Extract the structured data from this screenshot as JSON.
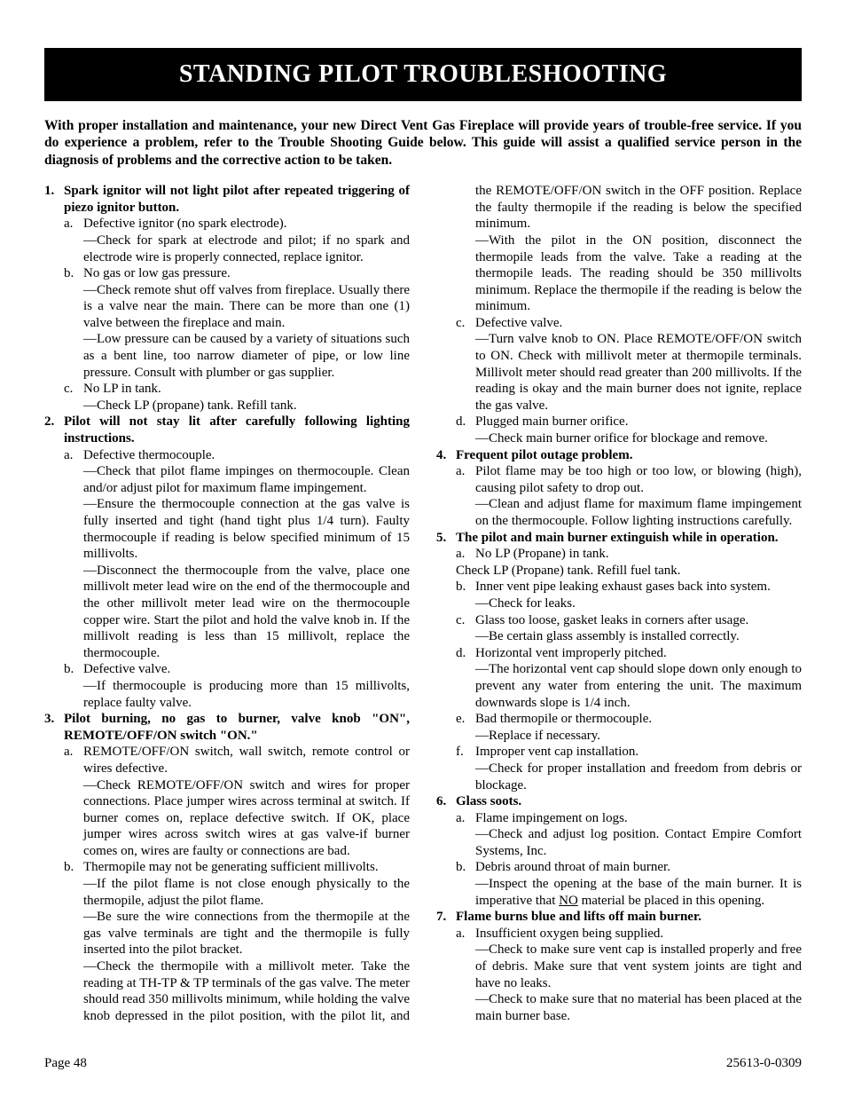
{
  "title": "STANDING PILOT TROUBLESHOOTING",
  "intro": "With proper installation and maintenance, your new Direct Vent Gas Fireplace will provide years of trouble-free service. If you do experience a problem, refer to the Trouble Shooting Guide below. This guide will assist a qualified service person in the diagnosis of problems and the corrective action to be taken.",
  "footer_left": "Page 48",
  "footer_right": "25613-0-0309",
  "t1": {
    "num": "1.",
    "h": "Spark ignitor will not light pilot after repeated triggering of piezo ignitor button.",
    "a": {
      "l": "a.",
      "t": "Defective ignitor (no spark electrode)."
    },
    "a1": "—Check for spark at electrode and pilot; if no spark and electrode wire is properly connected, replace ignitor.",
    "b": {
      "l": "b.",
      "t": "No gas or low gas pressure."
    },
    "b1": "—Check remote shut off valves from fireplace. Usually there is a valve near the main. There can be more than one (1) valve between the fireplace and main.",
    "b2": "—Low pressure can be caused by a variety of situations such as a bent line, too narrow diameter of pipe, or low line pressure. Consult with plumber or gas supplier.",
    "c": {
      "l": "c.",
      "t": "No LP in tank."
    },
    "c1": "—Check LP (propane) tank. Refill tank."
  },
  "t2": {
    "num": "2.",
    "h": "Pilot will not stay lit after carefully following lighting instructions.",
    "a": {
      "l": "a.",
      "t": "Defective thermocouple."
    },
    "a1": "—Check that pilot flame impinges on thermocouple. Clean and/or adjust pilot for maximum flame impingement.",
    "a2": "—Ensure the thermocouple connection at the gas valve is fully inserted and tight (hand tight plus 1/4 turn). Faulty thermocouple if reading is below specified minimum of 15 millivolts.",
    "a3": "—Disconnect the thermocouple from the valve, place one millivolt meter lead wire on the end of the thermocouple and the other millivolt meter lead wire on the thermocouple copper wire. Start the pilot and hold the valve knob in. If the millivolt reading is less than 15 millivolt, replace the thermocouple.",
    "b": {
      "l": "b.",
      "t": "Defective valve."
    },
    "b1": "—If thermocouple is producing more than 15 millivolts, replace faulty valve."
  },
  "t3": {
    "num": "3.",
    "h": "Pilot burning, no gas to burner, valve knob \"ON\", REMOTE/OFF/ON switch \"ON.\"",
    "a": {
      "l": "a.",
      "t": "REMOTE/OFF/ON switch, wall switch, remote control or wires defective."
    },
    "a1": "—Check REMOTE/OFF/ON switch and wires for proper connections. Place jumper wires across terminal at switch. If burner comes on, replace defective switch. If OK, place jumper wires across switch wires at gas valve-if burner comes on, wires are faulty or connections are bad.",
    "b": {
      "l": "b.",
      "t": "Thermopile may not be generating sufficient millivolts."
    },
    "b1": "—If the pilot flame is not close enough physically to the thermopile, adjust the pilot flame.",
    "b2": "—Be sure the wire connections from the thermopile at the gas valve terminals are tight and the thermopile is fully inserted into the pilot bracket.",
    "b3": "—Check the thermopile with a millivolt meter. Take the reading at TH-TP & TP terminals of the gas valve. The meter should read 350 millivolts minimum, while holding the valve knob depressed in the pilot position, with the pilot lit, and the REMOTE/OFF/ON switch in the OFF position. Replace the faulty thermopile if the reading is below the specified minimum.",
    "b4": "—With the pilot in the ON position, disconnect the thermopile leads from the valve. Take a reading at the thermopile leads. The reading should be 350 millivolts minimum. Replace the thermopile if the reading is below the minimum.",
    "c": {
      "l": "c.",
      "t": "Defective valve."
    },
    "c1": "—Turn valve knob to ON. Place REMOTE/OFF/ON switch to ON. Check with millivolt meter at thermopile terminals. Millivolt meter should read greater than 200 millivolts. If the reading is okay and the main burner does not ignite, replace the gas valve.",
    "d": {
      "l": "d.",
      "t": "Plugged main burner orifice."
    },
    "d1": "—Check main burner orifice for blockage and remove."
  },
  "t4": {
    "num": "4.",
    "h": "Frequent pilot outage problem.",
    "a": {
      "l": "a.",
      "t": "Pilot flame may be too high or too low, or blowing (high), causing pilot safety to drop out."
    },
    "a1": "—Clean and adjust flame for maximum flame impingement on the thermocouple. Follow lighting instructions carefully."
  },
  "t5": {
    "num": "5.",
    "h": "The pilot and main burner extinguish while in operation.",
    "a": {
      "l": "a.",
      "t": "No LP (Propane) in tank."
    },
    "a1": "Check LP (Propane) tank. Refill fuel tank.",
    "b": {
      "l": "b.",
      "t": "Inner vent pipe leaking exhaust gases back into system."
    },
    "b1": "—Check for leaks.",
    "c": {
      "l": "c.",
      "t": "Glass too loose, gasket leaks in corners after usage."
    },
    "c1": "—Be certain glass assembly is installed correctly.",
    "d": {
      "l": "d.",
      "t": "Horizontal vent improperly pitched."
    },
    "d1": "—The horizontal vent cap should slope down only enough to prevent any water from entering the unit. The maximum downwards slope is 1/4 inch.",
    "e": {
      "l": "e.",
      "t": "Bad thermopile or thermocouple."
    },
    "e1": "—Replace if necessary.",
    "f": {
      "l": "f.",
      "t": "Improper vent cap installation."
    },
    "f1": "—Check for proper installation and freedom from debris or blockage."
  },
  "t6": {
    "num": "6.",
    "h": "Glass soots.",
    "a": {
      "l": "a.",
      "t": "Flame impingement on logs."
    },
    "a1": "—Check and adjust log position. Contact Empire Comfort Systems, Inc.",
    "b": {
      "l": "b.",
      "t": "Debris around throat of main burner."
    },
    "b1pre": "—Inspect the opening at the base of the main burner. It is imperative that ",
    "b1u": "NO",
    "b1post": " material be placed in this opening."
  },
  "t7": {
    "num": "7.",
    "h": "Flame burns blue and lifts off main burner.",
    "a": {
      "l": "a.",
      "t": "Insufficient oxygen being supplied."
    },
    "a1": "—Check to make sure vent cap is installed properly and free of debris. Make sure that vent system joints are tight and have no leaks.",
    "a2": "—Check to make sure that no material has been placed at the main burner base."
  }
}
